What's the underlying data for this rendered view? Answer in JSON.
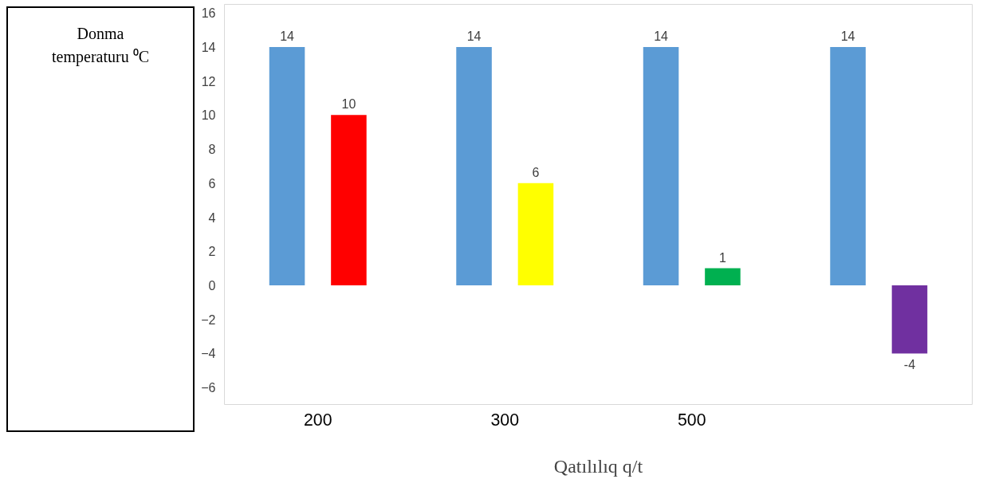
{
  "chart_data": {
    "type": "bar",
    "categories": [
      "200",
      "300",
      "500",
      null
    ],
    "series": [
      {
        "color": "#5b9bd5",
        "values": [
          14,
          14,
          14,
          14
        ]
      },
      {
        "colors": [
          "#ff0000",
          "#ffff00",
          "#00b050",
          "#7030a0"
        ],
        "values": [
          10,
          6,
          1,
          -4
        ]
      }
    ],
    "ylabel": "Donma temperaturu ⁰C",
    "xlabel": "Qatılılıq q/t",
    "ylim": [
      -7,
      16.5
    ],
    "yticks": [
      -6,
      -4,
      -2,
      0,
      2,
      4,
      6,
      8,
      10,
      12,
      14,
      16
    ],
    "data_labels": true,
    "grid": false
  }
}
